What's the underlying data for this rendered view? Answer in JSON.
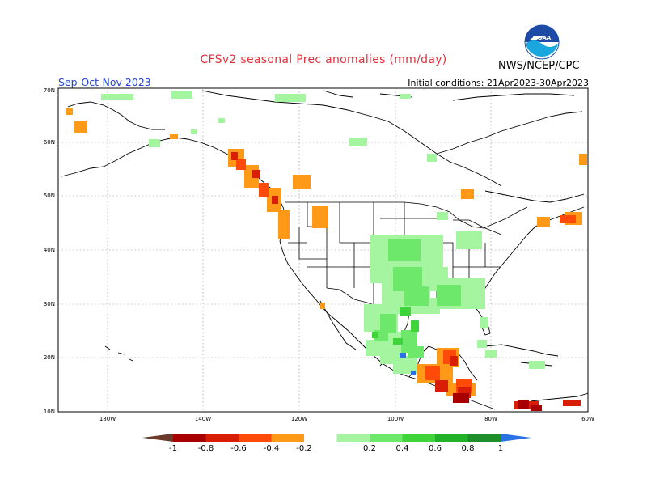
{
  "header": {
    "title": "CFSv2 seasonal Prec anomalies (mm/day)",
    "season": "Sep-Oct-Nov 2023",
    "initial_conditions": "Initial conditions: 21Apr2023-30Apr2023",
    "org": "NWS/NCEP/CPC",
    "logo_text": "NOAA"
  },
  "map": {
    "lat_labels": [
      "70N",
      "60N",
      "50N",
      "40N",
      "30N",
      "20N",
      "10N"
    ],
    "lon_labels": [
      "180W",
      "140W",
      "120W",
      "100W",
      "80W",
      "60W"
    ]
  },
  "colorbar": {
    "labels": [
      "-1",
      "-0.8",
      "-0.6",
      "-0.4",
      "-0.2",
      "0.2",
      "0.4",
      "0.6",
      "0.8",
      "1"
    ],
    "colors": [
      "#6b3a2a",
      "#a80000",
      "#d81e05",
      "#ff4a0a",
      "#ff9a19",
      "#ffffff",
      "#a5f5a0",
      "#6de86a",
      "#3fd43a",
      "#22b22a",
      "#1d8e2a",
      "#2a72e4"
    ]
  },
  "legend_colors": {
    "orange": "#ff9a19",
    "orange_red": "#ff4a0a",
    "red": "#d81e05",
    "dark_red": "#a80000",
    "light_green": "#a5f5a0",
    "green": "#6de86a",
    "mid_green": "#3fd43a",
    "blue": "#2a72e4"
  }
}
